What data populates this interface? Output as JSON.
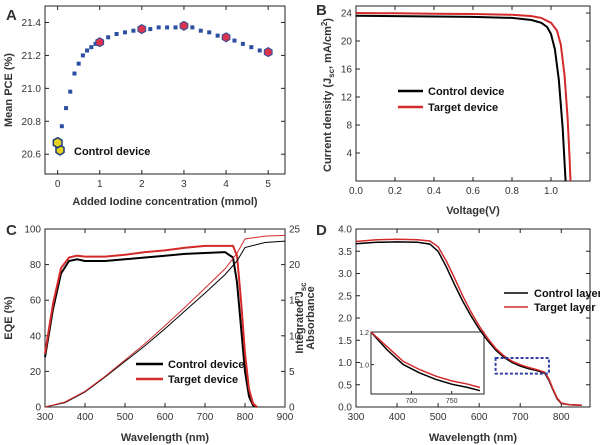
{
  "colors": {
    "control": "#000000",
    "target": "#d42a2a",
    "scatter_point": "#2b4ea0",
    "highlight": "#d8344e",
    "legend_hex": "#e6d21e",
    "dashed_box": "#3240a8"
  },
  "chart_data": [
    {
      "panel": "A",
      "type": "scatter",
      "xlabel": "Added Iodine concentration (mmol)",
      "ylabel": "Mean PCE (%)",
      "xlim": [
        -0.3,
        5.4
      ],
      "ylim": [
        20.48,
        21.5
      ],
      "xticks": [
        0,
        1,
        2,
        3,
        4,
        5
      ],
      "yticks": [
        20.6,
        20.8,
        21.0,
        21.2,
        21.4
      ],
      "xtick_labels": [
        "0",
        "1",
        "2",
        "3",
        "4",
        "5"
      ],
      "ytick_labels": [
        "20.6",
        "20.8",
        "21.0",
        "21.2",
        "21.4"
      ],
      "points": {
        "x": [
          0,
          0.1,
          0.2,
          0.3,
          0.4,
          0.5,
          0.6,
          0.7,
          0.8,
          0.9,
          1.0,
          1.2,
          1.4,
          1.6,
          1.8,
          2.0,
          2.2,
          2.4,
          2.6,
          2.8,
          3.0,
          3.2,
          3.4,
          3.6,
          3.8,
          4.0,
          4.2,
          4.4,
          4.6,
          4.8,
          5.0
        ],
        "y": [
          20.67,
          20.77,
          20.88,
          20.98,
          21.09,
          21.15,
          21.2,
          21.23,
          21.25,
          21.27,
          21.28,
          21.31,
          21.33,
          21.34,
          21.35,
          21.36,
          21.36,
          21.37,
          21.37,
          21.37,
          21.38,
          21.37,
          21.35,
          21.34,
          21.32,
          21.31,
          21.29,
          21.27,
          21.25,
          21.23,
          21.22
        ]
      },
      "highlighted": {
        "x": [
          1,
          2,
          3,
          4,
          5
        ],
        "y": [
          21.28,
          21.36,
          21.38,
          21.31,
          21.22
        ]
      },
      "legend": [
        {
          "label": "Control device",
          "marker": "hexagon"
        }
      ]
    },
    {
      "panel": "B",
      "type": "line",
      "xlabel": "Voltage(V)",
      "ylabel": "Current density (J",
      "ylabel_sub": "sc",
      "ylabel_tail": ", mA/cm",
      "ylabel_sup": "2",
      "ylabel_end": ")",
      "xlim": [
        0,
        1.2
      ],
      "ylim": [
        0,
        25
      ],
      "xticks": [
        0,
        0.2,
        0.4,
        0.6,
        0.8,
        1.0
      ],
      "yticks": [
        0,
        4,
        8,
        12,
        16,
        20,
        24
      ],
      "xtick_labels": [
        "0.0",
        "0.2",
        "0.4",
        "0.6",
        "0.8",
        "1.0"
      ],
      "ytick_labels": [
        "",
        "4",
        "8",
        "12",
        "16",
        "20",
        "24"
      ],
      "series": [
        {
          "name": "Control device",
          "x": [
            0,
            0.2,
            0.4,
            0.6,
            0.8,
            0.9,
            0.95,
            0.98,
            1.0,
            1.02,
            1.04,
            1.06,
            1.07,
            1.075
          ],
          "y": [
            23.6,
            23.55,
            23.5,
            23.45,
            23.3,
            23.0,
            22.6,
            22.0,
            21.0,
            18.8,
            14.5,
            7.5,
            2.5,
            0
          ]
        },
        {
          "name": "Target device",
          "x": [
            0,
            0.2,
            0.4,
            0.6,
            0.8,
            0.9,
            0.95,
            1.0,
            1.03,
            1.05,
            1.07,
            1.085,
            1.095,
            1.1
          ],
          "y": [
            24.0,
            23.95,
            23.9,
            23.85,
            23.75,
            23.55,
            23.3,
            22.6,
            21.5,
            19.5,
            15.0,
            9.0,
            3.5,
            0
          ]
        }
      ],
      "legend": [
        {
          "label": "Control device"
        },
        {
          "label": "Target device"
        }
      ]
    },
    {
      "panel": "C",
      "type": "line",
      "xlabel": "Wavelength (nm)",
      "ylabel": "EQE (%)",
      "ylabel_right": "Integrated J",
      "ylabel_right_sub": "sc",
      "ylabel_right2": "Absorbance",
      "xlim": [
        300,
        900
      ],
      "ylim": [
        0,
        100
      ],
      "y2lim": [
        0,
        25
      ],
      "xticks": [
        300,
        400,
        500,
        600,
        700,
        800,
        900
      ],
      "yticks": [
        0,
        20,
        40,
        60,
        80,
        100
      ],
      "y2ticks": [
        0,
        5,
        10,
        15,
        20,
        25
      ],
      "xtick_labels": [
        "300",
        "400",
        "500",
        "600",
        "700",
        "800",
        "900"
      ],
      "ytick_labels": [
        "0",
        "20",
        "40",
        "60",
        "80",
        "100"
      ],
      "y2tick_labels": [
        "0",
        "5",
        "10",
        "15",
        "20",
        "25"
      ],
      "series": [
        {
          "name": "Control device",
          "axis": "left",
          "x": [
            300,
            320,
            340,
            360,
            380,
            400,
            450,
            500,
            550,
            600,
            650,
            700,
            750,
            770,
            780,
            790,
            800,
            810,
            820,
            830
          ],
          "y": [
            28,
            55,
            75,
            82,
            83,
            82,
            82,
            83,
            84,
            85,
            86,
            86.5,
            87,
            84,
            70,
            45,
            20,
            6,
            1,
            0
          ]
        },
        {
          "name": "Target device",
          "axis": "left",
          "x": [
            300,
            320,
            340,
            360,
            380,
            400,
            450,
            500,
            550,
            600,
            650,
            700,
            750,
            770,
            780,
            790,
            800,
            810,
            820,
            830
          ],
          "y": [
            30,
            58,
            78,
            84,
            85,
            84.5,
            84.5,
            85.5,
            87,
            88,
            89.5,
            90.5,
            90.5,
            90.5,
            85,
            60,
            30,
            10,
            2,
            0
          ]
        },
        {
          "name": "Control integrated",
          "axis": "right",
          "x": [
            300,
            350,
            400,
            450,
            500,
            550,
            600,
            650,
            700,
            750,
            780,
            800,
            850,
            900
          ],
          "y": [
            0,
            0.6,
            2.1,
            4.2,
            6.4,
            8.6,
            11.0,
            13.5,
            16.0,
            18.6,
            20.5,
            22.4,
            23.1,
            23.3
          ]
        },
        {
          "name": "Target integrated",
          "axis": "right",
          "x": [
            300,
            350,
            400,
            450,
            500,
            550,
            600,
            650,
            700,
            750,
            780,
            800,
            850,
            900
          ],
          "y": [
            0,
            0.7,
            2.2,
            4.3,
            6.6,
            8.9,
            11.4,
            14.0,
            16.7,
            19.4,
            21.6,
            23.6,
            24.0,
            24.1
          ]
        }
      ],
      "legend": [
        {
          "label": "Control device"
        },
        {
          "label": "Target device"
        }
      ]
    },
    {
      "panel": "D",
      "type": "line",
      "xlabel": "Wavelength (nm)",
      "xlim": [
        300,
        870
      ],
      "ylim": [
        0,
        4.0
      ],
      "xticks": [
        300,
        400,
        500,
        600,
        700,
        800
      ],
      "yticks": [
        0,
        0.5,
        1.0,
        1.5,
        2.0,
        2.5,
        3.0,
        3.5,
        4.0
      ],
      "xtick_labels": [
        "300",
        "400",
        "500",
        "600",
        "700",
        "800"
      ],
      "ytick_labels": [
        "0.0",
        "0.5",
        "1.0",
        "1.5",
        "2.0",
        "2.5",
        "3.0",
        "3.5",
        "4.0"
      ],
      "series": [
        {
          "name": "Control layer",
          "x": [
            300,
            350,
            400,
            450,
            480,
            500,
            520,
            540,
            560,
            580,
            600,
            620,
            640,
            660,
            680,
            700,
            720,
            740,
            760,
            770,
            780,
            790,
            800,
            820,
            850
          ],
          "y": [
            3.67,
            3.7,
            3.71,
            3.7,
            3.66,
            3.5,
            3.15,
            2.75,
            2.38,
            2.05,
            1.75,
            1.5,
            1.28,
            1.12,
            1.0,
            0.92,
            0.86,
            0.82,
            0.76,
            0.6,
            0.38,
            0.18,
            0.08,
            0.05,
            0.04
          ]
        },
        {
          "name": "Target layer",
          "x": [
            300,
            350,
            400,
            450,
            480,
            500,
            520,
            540,
            560,
            580,
            600,
            620,
            640,
            660,
            680,
            700,
            720,
            740,
            760,
            770,
            780,
            790,
            800,
            820,
            850
          ],
          "y": [
            3.72,
            3.76,
            3.77,
            3.76,
            3.73,
            3.6,
            3.28,
            2.9,
            2.5,
            2.14,
            1.82,
            1.55,
            1.32,
            1.15,
            1.03,
            0.95,
            0.89,
            0.84,
            0.78,
            0.63,
            0.4,
            0.2,
            0.09,
            0.05,
            0.04
          ]
        }
      ],
      "legend": [
        {
          "label": "Control layer"
        },
        {
          "label": "Target layer"
        }
      ],
      "inset": {
        "xlim": [
          650,
          790
        ],
        "ylim": [
          0.82,
          1.2
        ],
        "xticks": [
          700,
          750
        ],
        "yticks": [
          1.0,
          1.2
        ],
        "xtick_labels": [
          "700",
          "750"
        ],
        "ytick_labels": [
          "1.0",
          "1.2"
        ],
        "series": [
          {
            "name": "Control layer",
            "x": [
              650,
              670,
              690,
              710,
              730,
              750,
              770,
              785
            ],
            "y": [
              1.2,
              1.09,
              1.0,
              0.95,
              0.91,
              0.88,
              0.86,
              0.84
            ]
          },
          {
            "name": "Target layer",
            "x": [
              650,
              670,
              690,
              710,
              730,
              750,
              770,
              785
            ],
            "y": [
              1.2,
              1.11,
              1.02,
              0.97,
              0.93,
              0.9,
              0.88,
              0.86
            ]
          }
        ]
      },
      "zoom_box": {
        "x": [
          640,
          770
        ],
        "y": [
          0.75,
          1.1
        ]
      }
    }
  ]
}
